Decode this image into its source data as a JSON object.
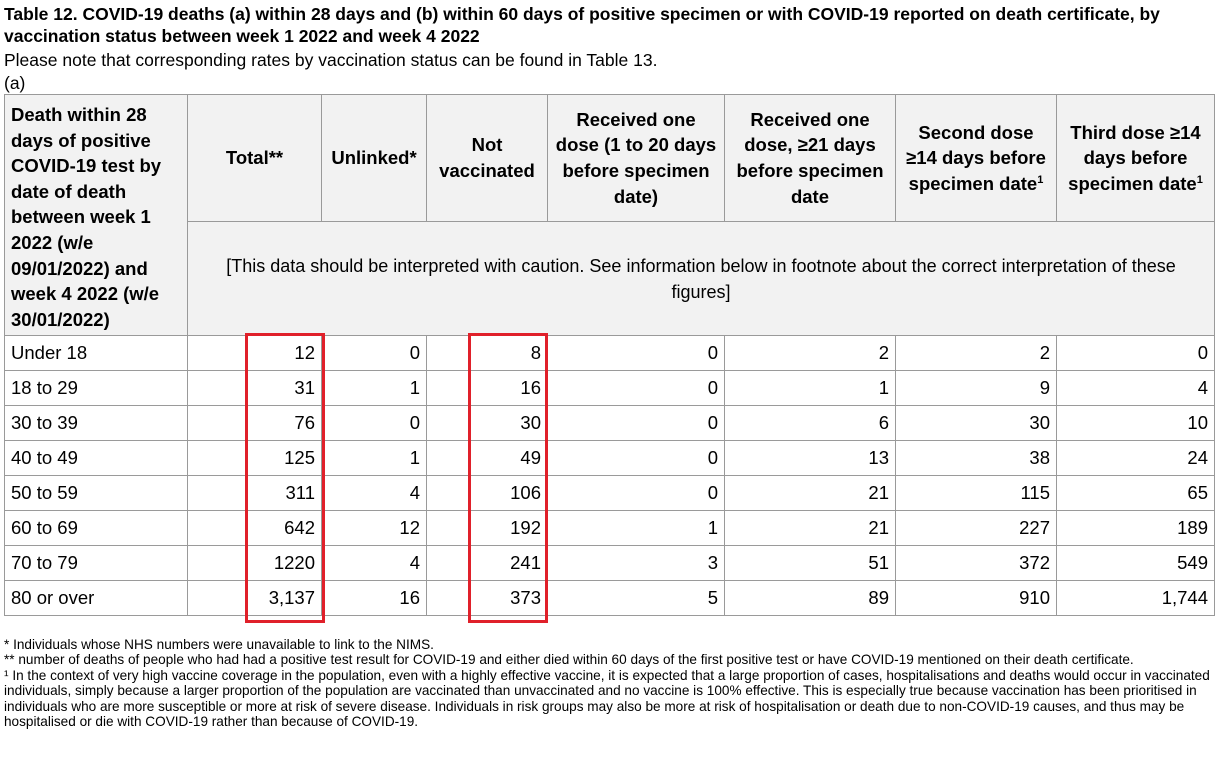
{
  "title": "Table 12. COVID-19 deaths (a) within 28 days and (b) within 60 days of positive specimen or with COVID-19 reported on death certificate, by vaccination status between week 1 2022 and week 4 2022",
  "note": "Please note that corresponding rates by vaccination status can be found in Table 13.",
  "sublabel": "(a)",
  "table": {
    "corner_header": "Death within 28 days of positive COVID-19 test by date of death between week 1 2022 (w/e 09/01/2022) and week 4 2022 (w/e 30/01/2022)",
    "columns": [
      {
        "label": "Total**",
        "sup": ""
      },
      {
        "label": "Unlinked*",
        "sup": ""
      },
      {
        "label": "Not vaccinated",
        "sup": ""
      },
      {
        "label": "Received one dose (1 to 20 days before specimen date)",
        "sup": ""
      },
      {
        "label": "Received one dose, ≥21 days before specimen date",
        "sup": ""
      },
      {
        "label": "Second dose ≥14 days before specimen date",
        "sup": "1"
      },
      {
        "label": "Third dose ≥14 days before specimen date",
        "sup": "1"
      }
    ],
    "caution": "[This data should be interpreted with caution. See information below in footnote about the correct interpretation of these figures]",
    "rows": [
      {
        "age": "Under 18",
        "values": [
          "12",
          "0",
          "8",
          "0",
          "2",
          "2",
          "0"
        ]
      },
      {
        "age": "18 to 29",
        "values": [
          "31",
          "1",
          "16",
          "0",
          "1",
          "9",
          "4"
        ]
      },
      {
        "age": "30 to 39",
        "values": [
          "76",
          "0",
          "30",
          "0",
          "6",
          "30",
          "10"
        ]
      },
      {
        "age": "40 to 49",
        "values": [
          "125",
          "1",
          "49",
          "0",
          "13",
          "38",
          "24"
        ]
      },
      {
        "age": "50 to 59",
        "values": [
          "311",
          "4",
          "106",
          "0",
          "21",
          "115",
          "65"
        ]
      },
      {
        "age": "60 to 69",
        "values": [
          "642",
          "12",
          "192",
          "1",
          "21",
          "227",
          "189"
        ]
      },
      {
        "age": "70 to 79",
        "values": [
          "1220",
          "4",
          "241",
          "3",
          "51",
          "372",
          "549"
        ]
      },
      {
        "age": "80 or over",
        "values": [
          "3,137",
          "16",
          "373",
          "5",
          "89",
          "910",
          "1,744"
        ]
      }
    ]
  },
  "highlight_color": "#e0202a",
  "footnotes": [
    {
      "mark": "*",
      "text": "Individuals whose NHS numbers were unavailable to link to the NIMS."
    },
    {
      "mark": "**",
      "text": "number of deaths of people who had had a positive test result for COVID-19 and either died within 60 days of the first positive test or have COVID-19 mentioned on their death certificate."
    },
    {
      "mark": "¹",
      "text": "In the context of very high vaccine coverage in the population, even with a highly effective vaccine, it is expected that a large proportion of cases, hospitalisations and deaths would occur in vaccinated individuals, simply because a larger proportion of the population are vaccinated than unvaccinated and no vaccine is 100% effective. This is especially true because vaccination has been prioritised in individuals who are more susceptible or more at risk of severe disease. Individuals in risk groups may also be more at risk of hospitalisation or death due to non-COVID-19 causes, and thus may be hospitalised or die with COVID-19 rather than because of COVID-19."
    }
  ]
}
